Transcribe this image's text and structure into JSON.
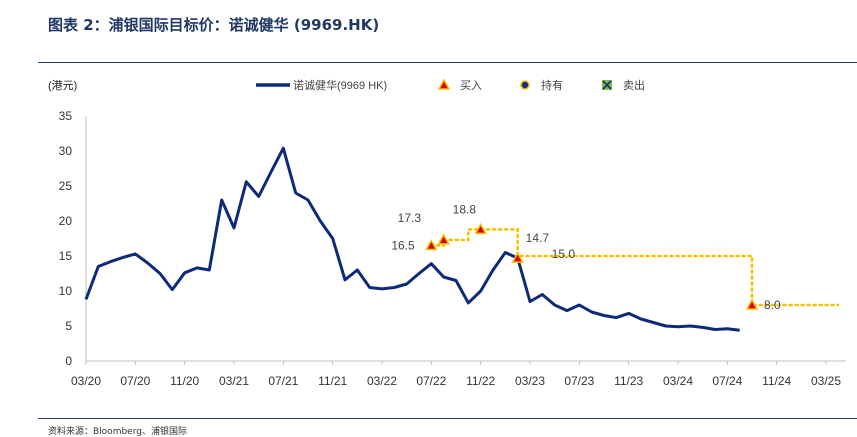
{
  "header": {
    "title": "图表 2：浦银国际目标价：诺诚健华 (9969.HK)"
  },
  "footer": {
    "source": "资料来源：Bloomberg、浦银国际"
  },
  "colors": {
    "price_line": "#0d2a7a",
    "target_line": "#f5c200",
    "buy_marker": "#e00000",
    "hold_marker": "#1a2b8c",
    "sell_marker": "#7fbf3f",
    "axis": "#bfbfbf",
    "title": "#1f3864"
  },
  "chart_data": {
    "type": "line",
    "title": "",
    "ylabel": "(港元)",
    "ylim": [
      0,
      35
    ],
    "yticks": [
      0,
      5,
      10,
      15,
      20,
      25,
      30,
      35
    ],
    "xlim": [
      "2020-03",
      "2025-03"
    ],
    "xticks": [
      "03/20",
      "07/20",
      "11/20",
      "03/21",
      "07/21",
      "11/21",
      "03/22",
      "07/22",
      "11/22",
      "03/23",
      "07/23",
      "11/23",
      "03/24",
      "07/24",
      "11/24",
      "03/25"
    ],
    "grid": false,
    "legend": {
      "placement": "top",
      "items": [
        {
          "label": "诺诚健华(9969 HK)",
          "marker": "line"
        },
        {
          "label": "买入",
          "marker": "buy"
        },
        {
          "label": "持有",
          "marker": "hold"
        },
        {
          "label": "卖出",
          "marker": "sell"
        }
      ]
    },
    "series": [
      {
        "name": "诺诚健华(9969 HK)",
        "x": [
          "2020-03",
          "2020-04",
          "2020-05",
          "2020-06",
          "2020-07",
          "2020-08",
          "2020-09",
          "2020-10",
          "2020-11",
          "2020-12",
          "2021-01",
          "2021-02",
          "2021-03",
          "2021-04",
          "2021-05",
          "2021-06",
          "2021-07",
          "2021-08",
          "2021-09",
          "2021-10",
          "2021-11",
          "2021-12",
          "2022-01",
          "2022-02",
          "2022-03",
          "2022-04",
          "2022-05",
          "2022-06",
          "2022-07",
          "2022-08",
          "2022-09",
          "2022-10",
          "2022-11",
          "2022-12",
          "2023-01",
          "2023-02",
          "2023-03",
          "2023-04",
          "2023-05",
          "2023-06",
          "2023-07",
          "2023-08",
          "2023-09",
          "2023-10",
          "2023-11",
          "2023-12",
          "2024-01",
          "2024-02",
          "2024-03",
          "2024-04",
          "2024-05",
          "2024-06",
          "2024-07",
          "2024-08"
        ],
        "values": [
          8.8,
          13.5,
          14.2,
          14.8,
          15.3,
          14.0,
          12.5,
          10.2,
          12.6,
          13.3,
          13.0,
          23.0,
          19.0,
          25.6,
          23.5,
          27.0,
          30.4,
          24.0,
          23.0,
          20.0,
          17.5,
          11.6,
          13.0,
          10.5,
          10.3,
          10.5,
          11.0,
          12.5,
          13.9,
          12.0,
          11.5,
          8.3,
          10.0,
          13.0,
          15.5,
          14.7,
          8.5,
          9.5,
          8.0,
          7.2,
          8.0,
          7.0,
          6.5,
          6.2,
          6.8,
          6.0,
          5.5,
          5.0,
          4.9,
          5.0,
          4.8,
          4.5,
          4.6,
          4.4
        ]
      }
    ],
    "ratings": [
      {
        "date": "2022-07",
        "type": "buy",
        "target": 16.5,
        "label": "16.5"
      },
      {
        "date": "2022-08",
        "type": "buy",
        "target": 17.3,
        "label": "17.3"
      },
      {
        "date": "2022-11",
        "type": "buy",
        "target": 18.8,
        "label": "18.8"
      },
      {
        "date": "2023-02",
        "type": "buy",
        "target": 14.7,
        "label": "14.7"
      },
      {
        "date": "2023-02",
        "type": "buy",
        "target": 15.0,
        "label": "15.0"
      },
      {
        "date": "2024-09",
        "type": "buy",
        "target": 8.0,
        "label": "8.0"
      }
    ],
    "target_line": {
      "x": [
        "2022-07",
        "2022-08",
        "2022-08",
        "2022-10",
        "2022-10",
        "2023-02",
        "2023-02",
        "2024-09",
        "2024-09",
        "2025-04"
      ],
      "y": [
        16.5,
        16.5,
        17.3,
        17.3,
        18.8,
        18.8,
        15.0,
        15.0,
        8.0,
        8.0
      ]
    }
  }
}
